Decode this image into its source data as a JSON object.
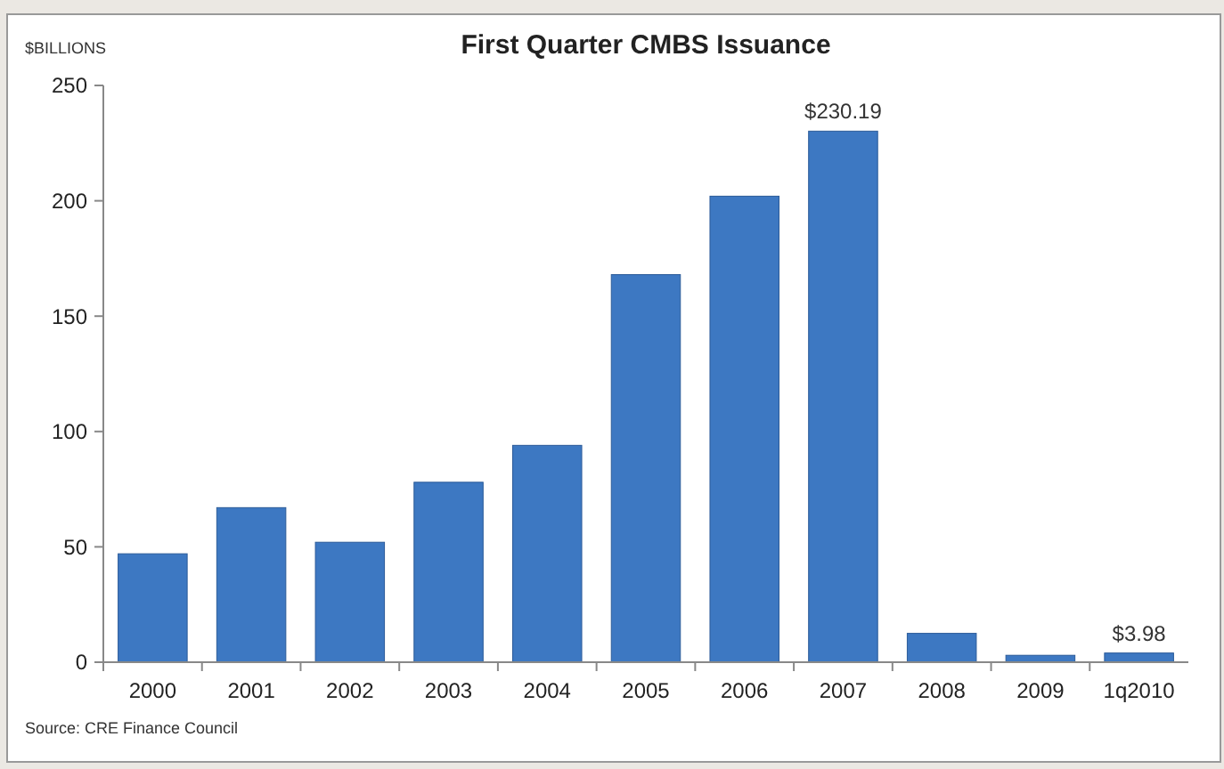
{
  "chart_data": {
    "type": "bar",
    "title": "First Quarter CMBS Issuance",
    "ylabel": "$BILLIONS",
    "categories": [
      "2000",
      "2001",
      "2002",
      "2003",
      "2004",
      "2005",
      "2006",
      "2007",
      "2008",
      "2009",
      "1q2010"
    ],
    "values": [
      47,
      67,
      52,
      78,
      94,
      168,
      202,
      230.19,
      12.5,
      3,
      3.98
    ],
    "value_labels": [
      null,
      null,
      null,
      null,
      null,
      null,
      null,
      "$230.19",
      null,
      null,
      "$3.98"
    ],
    "color": "#3d78c2",
    "ylim": [
      0,
      250
    ],
    "yticks": [
      0,
      50,
      100,
      150,
      200,
      250
    ],
    "grid": false,
    "annotations": [
      "Source: CRE Finance Council"
    ]
  }
}
